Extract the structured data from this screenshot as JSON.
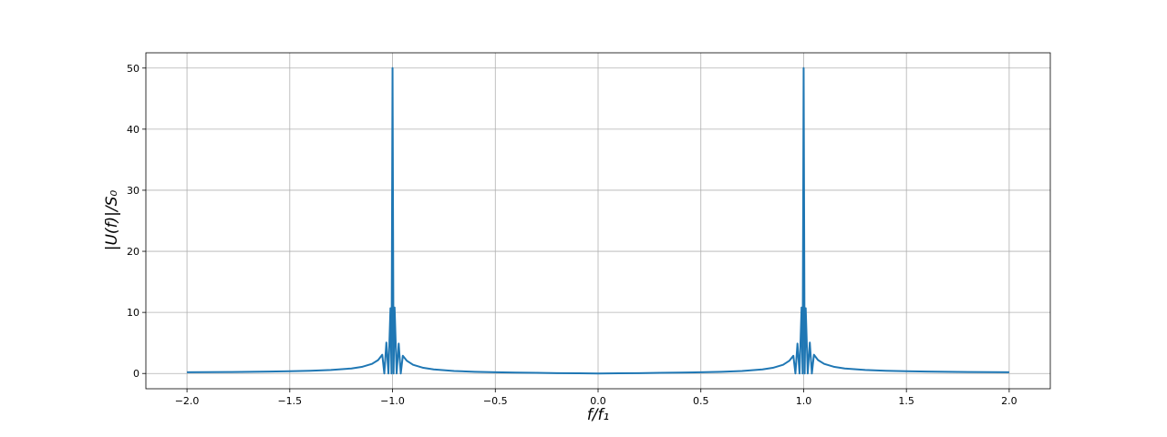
{
  "chart_data": {
    "type": "line",
    "x_label": "f/f₁",
    "y_label": "|U(f)|/S₀",
    "x": [
      -2.0,
      -1.8,
      -1.6,
      -1.5,
      -1.4,
      -1.3,
      -1.2,
      -1.15,
      -1.1,
      -1.07,
      -1.05,
      -1.04,
      -1.03,
      -1.02,
      -1.01,
      -1.005,
      -1.0,
      -0.995,
      -0.99,
      -0.98,
      -0.97,
      -0.96,
      -0.95,
      -0.93,
      -0.9,
      -0.85,
      -0.8,
      -0.7,
      -0.6,
      -0.5,
      -0.4,
      -0.3,
      -0.2,
      -0.1,
      0,
      0.1,
      0.2,
      0.3,
      0.4,
      0.5,
      0.6,
      0.7,
      0.8,
      0.85,
      0.9,
      0.93,
      0.95,
      0.96,
      0.97,
      0.98,
      0.99,
      0.995,
      1.0,
      1.005,
      1.01,
      1.02,
      1.03,
      1.04,
      1.05,
      1.07,
      1.1,
      1.15,
      1.2,
      1.3,
      1.4,
      1.5,
      1.6,
      1.8,
      2.0
    ],
    "values": [
      0.2,
      0.24,
      0.31,
      0.36,
      0.44,
      0.57,
      0.82,
      1.07,
      1.57,
      2.2,
      3.07,
      0,
      5.07,
      0,
      10.7,
      0,
      50,
      0,
      10.8,
      0,
      4.9,
      0,
      2.9,
      2.07,
      1.42,
      0.92,
      0.67,
      0.41,
      0.28,
      0.2,
      0.14,
      0.1,
      0.06,
      0.03,
      0,
      0.03,
      0.06,
      0.1,
      0.14,
      0.2,
      0.28,
      0.41,
      0.67,
      0.92,
      1.42,
      2.07,
      2.9,
      0,
      4.9,
      0,
      10.8,
      0,
      50,
      0,
      10.7,
      0,
      5.07,
      0,
      3.07,
      2.2,
      1.57,
      1.07,
      0.82,
      0.57,
      0.44,
      0.36,
      0.31,
      0.24,
      0.2
    ],
    "color": "#1f77b4",
    "xlim": [
      -2.2,
      2.2
    ],
    "xticks": [
      {
        "value": -2.0,
        "label": "−2.0"
      },
      {
        "value": -1.5,
        "label": "−1.5"
      },
      {
        "value": -1.0,
        "label": "−1.0"
      },
      {
        "value": -0.5,
        "label": "−0.5"
      },
      {
        "value": 0,
        "label": "0.0"
      },
      {
        "value": 0.5,
        "label": "0.5"
      },
      {
        "value": 1.0,
        "label": "1.0"
      },
      {
        "value": 1.5,
        "label": "1.5"
      },
      {
        "value": 2.0,
        "label": "2.0"
      }
    ],
    "ylim": [
      -2.5,
      52.5
    ],
    "yticks": [
      0,
      10,
      20,
      30,
      40,
      50
    ],
    "grid": true
  }
}
